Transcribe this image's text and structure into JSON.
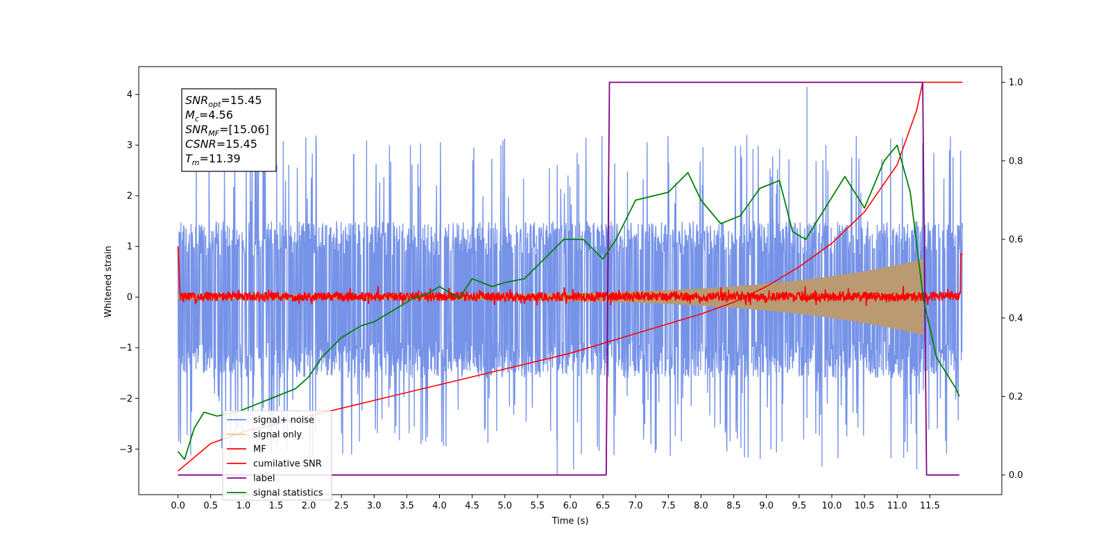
{
  "chart_data": {
    "type": "line",
    "xlabel": "Time (s)",
    "ylabel": "Whitened strain",
    "xlim": [
      -0.6,
      12.6
    ],
    "ylim_left": [
      -3.9,
      4.55
    ],
    "ylim_right": [
      -0.05,
      1.04
    ],
    "xticks": [
      "0.0",
      "0.5",
      "1.0",
      "1.5",
      "2.0",
      "2.5",
      "3.0",
      "3.5",
      "4.0",
      "4.5",
      "5.0",
      "5.5",
      "6.0",
      "6.5",
      "7.0",
      "7.5",
      "8.0",
      "8.5",
      "9.0",
      "9.5",
      "10.0",
      "10.5",
      "11.0",
      "11.5"
    ],
    "xtick_values": [
      0.0,
      0.5,
      1.0,
      1.5,
      2.0,
      2.5,
      3.0,
      3.5,
      4.0,
      4.5,
      5.0,
      5.5,
      6.0,
      6.5,
      7.0,
      7.5,
      8.0,
      8.5,
      9.0,
      9.5,
      10.0,
      10.5,
      11.0,
      11.5
    ],
    "yticks_left": [
      "−3",
      "−2",
      "−1",
      "0",
      "1",
      "2",
      "3",
      "4"
    ],
    "ytick_left_values": [
      -3,
      -2,
      -1,
      0,
      1,
      2,
      3,
      4
    ],
    "yticks_right": [
      "0.0",
      "0.2",
      "0.4",
      "0.6",
      "0.8",
      "1.0"
    ],
    "ytick_right_values": [
      0.0,
      0.2,
      0.4,
      0.6,
      0.8,
      1.0
    ],
    "grid": false,
    "legend_placement": "lower-left",
    "annotation": [
      {
        "sym": "SNR",
        "sub": "opt",
        "val": "=15.45"
      },
      {
        "sym": "M",
        "sub": "c",
        "val": "=4.56"
      },
      {
        "sym": "SNR",
        "sub": "MF",
        "val": "=[15.06]"
      },
      {
        "sym": "CSNR",
        "sub": "",
        "val": "=15.45"
      },
      {
        "sym": "T",
        "sub": "m",
        "val": "=11.39"
      }
    ],
    "series": [
      {
        "name": "signal+ noise",
        "color": "#6a8ae6",
        "axis": "left",
        "kind": "noise band",
        "t_range": [
          0.0,
          12.0
        ],
        "typical_range": [
          -1.6,
          1.5
        ],
        "extremes": [
          -3.5,
          4.15
        ]
      },
      {
        "name": "signal only",
        "color": "#f5c878",
        "axis": "left",
        "kind": "chirp envelope",
        "t_range": [
          0.0,
          11.4
        ],
        "amplitude_start": 0.05,
        "amplitude_end": 0.75
      },
      {
        "name": "MF",
        "color": "#ff0000",
        "axis": "left",
        "kind": "noise band",
        "t_range": [
          0.0,
          12.0
        ],
        "typical_range": [
          -0.08,
          0.1
        ]
      },
      {
        "name": "cumilative SNR",
        "color": "#ff0000",
        "axis": "right",
        "x": [
          0.0,
          0.5,
          1.0,
          2.0,
          3.0,
          4.0,
          5.0,
          6.0,
          7.0,
          8.0,
          8.5,
          9.0,
          9.5,
          10.0,
          10.5,
          11.0,
          11.3,
          11.39,
          12.0
        ],
        "y": [
          0.01,
          0.08,
          0.11,
          0.15,
          0.19,
          0.23,
          0.27,
          0.31,
          0.36,
          0.41,
          0.44,
          0.48,
          0.53,
          0.59,
          0.67,
          0.79,
          0.93,
          1.0,
          1.0
        ]
      },
      {
        "name": "label",
        "color": "#800080",
        "axis": "right",
        "x": [
          0.0,
          6.55,
          6.6,
          11.39,
          11.45,
          11.95
        ],
        "y": [
          0,
          0,
          1,
          1,
          0,
          0
        ]
      },
      {
        "name": "signal statistics",
        "color": "#008000",
        "axis": "right",
        "x": [
          0.0,
          0.1,
          0.25,
          0.4,
          0.6,
          0.9,
          1.2,
          1.5,
          1.8,
          2.0,
          2.2,
          2.5,
          2.8,
          3.0,
          3.3,
          3.6,
          3.8,
          4.0,
          4.3,
          4.5,
          4.8,
          5.0,
          5.3,
          5.6,
          5.9,
          6.2,
          6.5,
          6.7,
          7.0,
          7.5,
          7.8,
          8.0,
          8.3,
          8.6,
          8.9,
          9.2,
          9.4,
          9.6,
          9.9,
          10.2,
          10.5,
          10.8,
          11.0,
          11.2,
          11.4,
          11.6,
          11.9,
          11.95
        ],
        "y": [
          0.06,
          0.04,
          0.12,
          0.16,
          0.15,
          0.16,
          0.18,
          0.2,
          0.22,
          0.25,
          0.3,
          0.35,
          0.38,
          0.39,
          0.42,
          0.45,
          0.46,
          0.48,
          0.45,
          0.5,
          0.48,
          0.49,
          0.5,
          0.55,
          0.6,
          0.6,
          0.55,
          0.6,
          0.7,
          0.72,
          0.77,
          0.7,
          0.64,
          0.66,
          0.73,
          0.75,
          0.62,
          0.6,
          0.68,
          0.76,
          0.68,
          0.8,
          0.84,
          0.72,
          0.45,
          0.3,
          0.22,
          0.2
        ]
      }
    ]
  }
}
